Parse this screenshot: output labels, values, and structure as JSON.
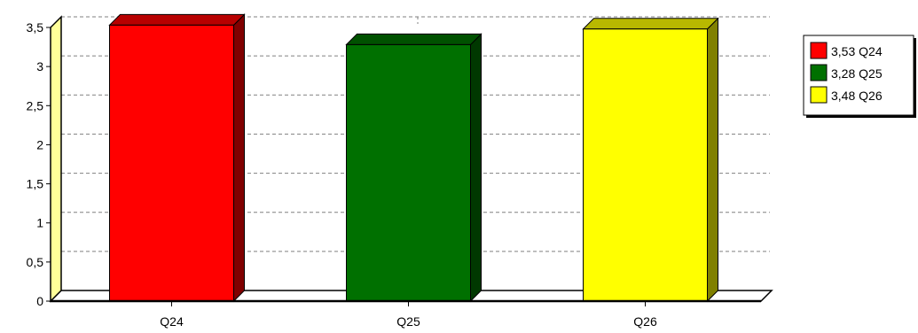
{
  "chart_data": {
    "type": "bar",
    "categories": [
      "Q24",
      "Q25",
      "Q26"
    ],
    "values": [
      3.53,
      3.28,
      3.48
    ],
    "colors": [
      "#ff0000",
      "#007000",
      "#ffff00"
    ],
    "yticks": [
      "0",
      "0,5",
      "1",
      "1,5",
      "2",
      "2,5",
      "3",
      "3,5"
    ],
    "ylim": [
      0,
      3.5
    ],
    "grid": true,
    "legend_position": "right",
    "legend": [
      {
        "label": "3,53 Q24",
        "color": "#ff0000"
      },
      {
        "label": "3,28 Q25",
        "color": "#007000"
      },
      {
        "label": "3,48 Q26",
        "color": "#ffff00"
      }
    ]
  }
}
